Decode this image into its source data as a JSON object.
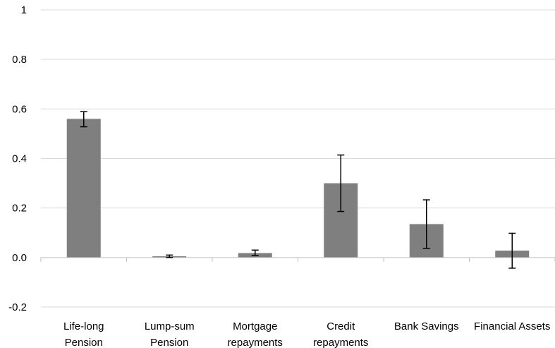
{
  "chart_data": {
    "type": "bar",
    "categories": [
      [
        "Life-long",
        "Pension"
      ],
      [
        "Lump-sum",
        "Pension"
      ],
      [
        "Mortgage",
        "repayments"
      ],
      [
        "Credit",
        "repayments"
      ],
      [
        "Bank Savings"
      ],
      [
        "Financial Assets"
      ]
    ],
    "values": [
      0.56,
      0.005,
      0.018,
      0.3,
      0.135,
      0.028
    ],
    "error_low": [
      0.528,
      0.0,
      0.008,
      0.186,
      0.037,
      -0.043
    ],
    "error_high": [
      0.589,
      0.01,
      0.03,
      0.414,
      0.233,
      0.098
    ],
    "ylim": [
      -0.2,
      1.0
    ],
    "yticks": [
      -0.2,
      0.0,
      0.2,
      0.4,
      0.6,
      0.8,
      1.0
    ],
    "ytick_labels": [
      "-0.2",
      "0.0",
      "0.2",
      "0.4",
      "0.6",
      "0.8",
      "1"
    ],
    "grid": true,
    "colors": {
      "bar": "#7f7f7f",
      "error": "#000000",
      "grid": "#d9d9d9"
    }
  }
}
